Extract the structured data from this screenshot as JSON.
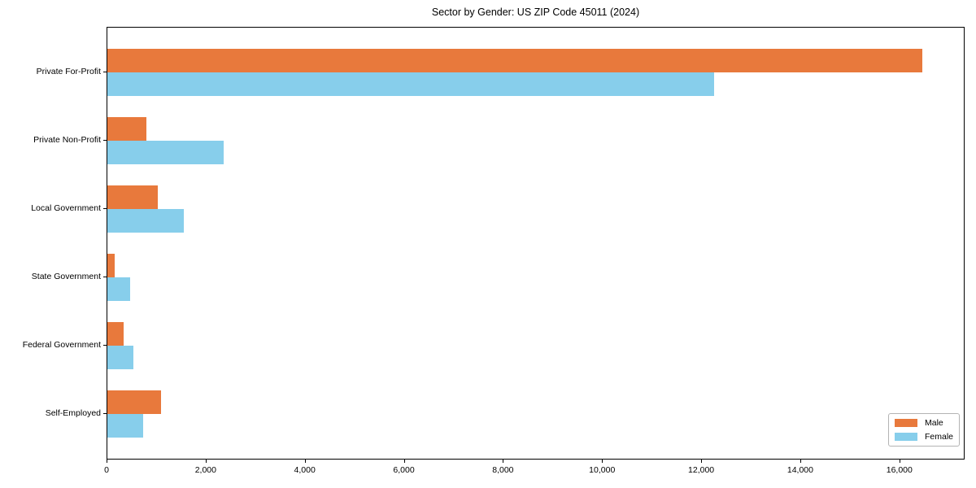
{
  "chart_data": {
    "type": "bar",
    "orientation": "horizontal",
    "title": "Sector by Gender: US ZIP Code 45011 (2024)",
    "categories": [
      "Private For-Profit",
      "Private Non-Profit",
      "Local Government",
      "State Government",
      "Federal Government",
      "Self-Employed"
    ],
    "series": [
      {
        "name": "Male",
        "color": "#e8793c",
        "values": [
          16450,
          780,
          1020,
          140,
          330,
          1090
        ]
      },
      {
        "name": "Female",
        "color": "#87ceeb",
        "values": [
          12250,
          2350,
          1550,
          460,
          530,
          730
        ]
      }
    ],
    "xlabel": "",
    "ylabel": "",
    "xlim": [
      0,
      17300
    ],
    "x_ticks": [
      0,
      2000,
      4000,
      6000,
      8000,
      10000,
      12000,
      14000,
      16000
    ],
    "x_tick_labels": [
      "0",
      "2,000",
      "4,000",
      "6,000",
      "8,000",
      "10,000",
      "12,000",
      "14,000",
      "16,000"
    ],
    "grid": false,
    "legend_position": "lower right"
  }
}
